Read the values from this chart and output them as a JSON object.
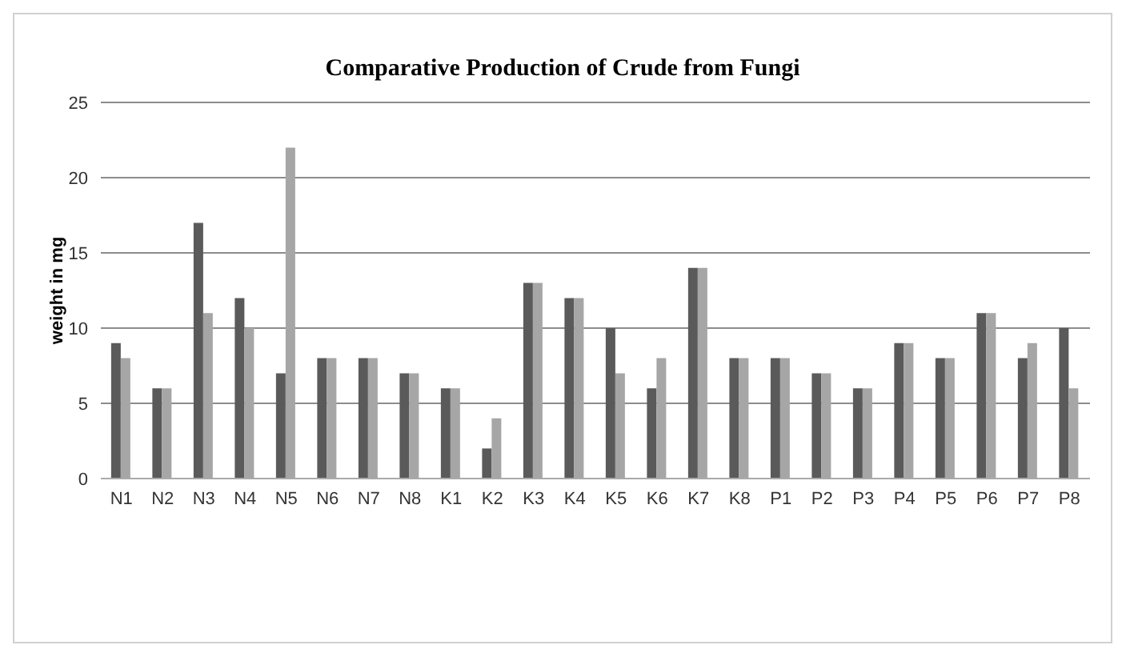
{
  "chart_data": {
    "type": "bar",
    "title": "Comparative Production of Crude from Fungi",
    "ylabel": "weight in mg",
    "categories": [
      "N1",
      "N2",
      "N3",
      "N4",
      "N5",
      "N6",
      "N7",
      "N8",
      "K1",
      "K2",
      "K3",
      "K4",
      "K5",
      "K6",
      "K7",
      "K8",
      "P1",
      "P2",
      "P3",
      "P4",
      "P5",
      "P6",
      "P7",
      "P8"
    ],
    "series": [
      {
        "color": "#5a5a5a",
        "values": [
          9,
          6,
          17,
          12,
          7,
          8,
          8,
          7,
          6,
          2,
          13,
          12,
          10,
          6,
          14,
          8,
          8,
          7,
          6,
          9,
          8,
          11,
          8,
          10
        ]
      },
      {
        "color": "#a6a6a6",
        "values": [
          8,
          6,
          11,
          10,
          22,
          8,
          8,
          7,
          6,
          4,
          13,
          12,
          7,
          8,
          14,
          8,
          8,
          7,
          6,
          9,
          8,
          11,
          9,
          6
        ]
      }
    ],
    "ylim": [
      0,
      25
    ],
    "yticks": [
      0,
      5,
      10,
      15,
      20,
      25
    ],
    "grid": "y",
    "legend": false
  }
}
